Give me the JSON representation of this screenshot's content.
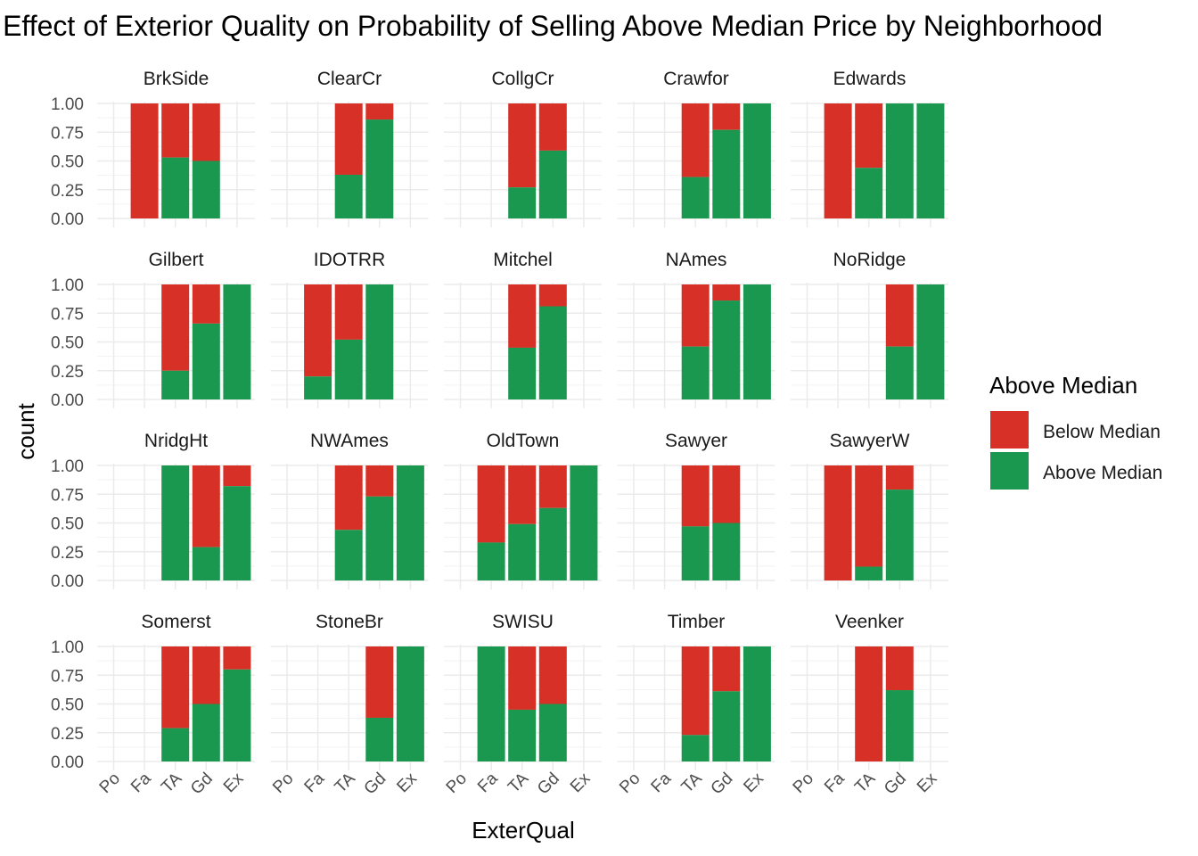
{
  "chart_data": {
    "type": "bar",
    "title": "Effect of Exterior Quality on Probability of Selling Above Median Price by Neighborhood",
    "xlabel": "ExterQual",
    "ylabel": "count",
    "categories": [
      "Po",
      "Fa",
      "TA",
      "Gd",
      "Ex"
    ],
    "yticks": [
      "0.00",
      "0.25",
      "0.50",
      "0.75",
      "1.00"
    ],
    "ylim": [
      0,
      1
    ],
    "stacked": true,
    "position": "fill",
    "grid": true,
    "legend": {
      "title": "Above Median",
      "placement": "right",
      "entries": [
        {
          "label": "Below Median",
          "color": "#d73027"
        },
        {
          "label": "Above Median",
          "color": "#1a9850"
        }
      ]
    },
    "facets": [
      {
        "name": "BrkSide",
        "values": {
          "Fa": 0.0,
          "TA": 0.53,
          "Gd": 0.5
        }
      },
      {
        "name": "ClearCr",
        "values": {
          "TA": 0.38,
          "Gd": 0.86
        }
      },
      {
        "name": "CollgCr",
        "values": {
          "TA": 0.27,
          "Gd": 0.59
        }
      },
      {
        "name": "Crawfor",
        "values": {
          "TA": 0.36,
          "Gd": 0.77,
          "Ex": 1.0
        }
      },
      {
        "name": "Edwards",
        "values": {
          "Fa": 0.0,
          "TA": 0.44,
          "Gd": 1.0,
          "Ex": 1.0
        }
      },
      {
        "name": "Gilbert",
        "values": {
          "TA": 0.25,
          "Gd": 0.66,
          "Ex": 1.0
        }
      },
      {
        "name": "IDOTRR",
        "values": {
          "Fa": 0.2,
          "TA": 0.52,
          "Gd": 1.0
        }
      },
      {
        "name": "Mitchel",
        "values": {
          "TA": 0.45,
          "Gd": 0.81
        }
      },
      {
        "name": "NAmes",
        "values": {
          "TA": 0.46,
          "Gd": 0.86,
          "Ex": 1.0
        }
      },
      {
        "name": "NoRidge",
        "values": {
          "Gd": 0.46,
          "Ex": 1.0
        }
      },
      {
        "name": "NridgHt",
        "values": {
          "TA": 1.0,
          "Gd": 0.29,
          "Ex": 0.82
        }
      },
      {
        "name": "NWAmes",
        "values": {
          "TA": 0.44,
          "Gd": 0.73,
          "Ex": 1.0
        }
      },
      {
        "name": "OldTown",
        "values": {
          "Fa": 0.33,
          "TA": 0.49,
          "Gd": 0.63,
          "Ex": 1.0
        }
      },
      {
        "name": "Sawyer",
        "values": {
          "TA": 0.47,
          "Gd": 0.5
        }
      },
      {
        "name": "SawyerW",
        "values": {
          "Fa": 0.0,
          "TA": 0.12,
          "Gd": 0.79
        }
      },
      {
        "name": "Somerst",
        "values": {
          "TA": 0.29,
          "Gd": 0.5,
          "Ex": 0.8
        }
      },
      {
        "name": "StoneBr",
        "values": {
          "Gd": 0.38,
          "Ex": 1.0
        }
      },
      {
        "name": "SWISU",
        "values": {
          "Fa": 1.0,
          "TA": 0.45,
          "Gd": 0.5
        }
      },
      {
        "name": "Timber",
        "values": {
          "TA": 0.23,
          "Gd": 0.61,
          "Ex": 1.0
        }
      },
      {
        "name": "Veenker",
        "values": {
          "TA": 0.0,
          "Gd": 0.62
        }
      }
    ],
    "series_colors": {
      "below": "#d73027",
      "above": "#1a9850"
    }
  }
}
